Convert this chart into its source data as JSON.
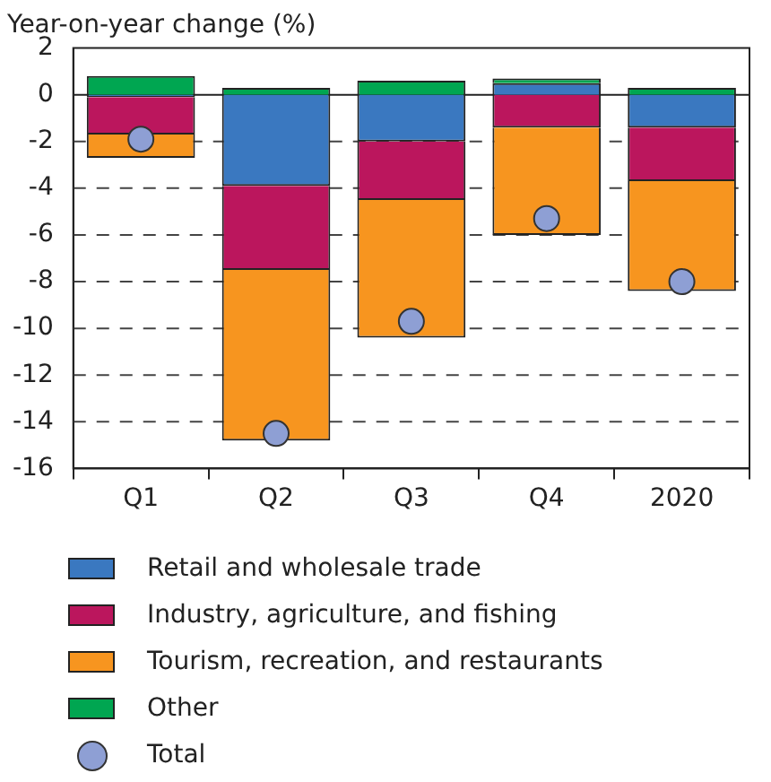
{
  "chart_data": {
    "type": "bar",
    "ylabel": "Year-on-year change (%)",
    "categories": [
      "Q1",
      "Q2",
      "Q3",
      "Q4",
      "2020"
    ],
    "stacked": true,
    "series": [
      {
        "name": "Retail and wholesale trade",
        "color": "#3a78c0",
        "values": [
          -0.1,
          -3.9,
          -2.0,
          0.5,
          -1.4
        ]
      },
      {
        "name": "Industry, agriculture, and fishing",
        "color": "#bb165d",
        "values": [
          -1.6,
          -3.6,
          -2.5,
          -1.4,
          -2.3
        ]
      },
      {
        "name": "Tourism, recreation, and restaurants",
        "color": "#f7951f",
        "values": [
          -1.0,
          -7.3,
          -5.9,
          -4.6,
          -4.7
        ]
      },
      {
        "name": "Other",
        "color": "#00a651",
        "values": [
          0.8,
          0.3,
          0.6,
          0.2,
          0.3
        ]
      },
      {
        "name": "Total",
        "type": "scatter",
        "color": "#8e9fd4",
        "values": [
          -1.9,
          -14.5,
          -9.7,
          -5.3,
          -8.0
        ]
      }
    ],
    "ylim": [
      -16,
      2
    ],
    "yticks": [
      -16,
      -14,
      -12,
      -10,
      -8,
      -6,
      -4,
      -2,
      0,
      2
    ],
    "grid": "y",
    "legend": "bottom",
    "marker": "circle"
  }
}
